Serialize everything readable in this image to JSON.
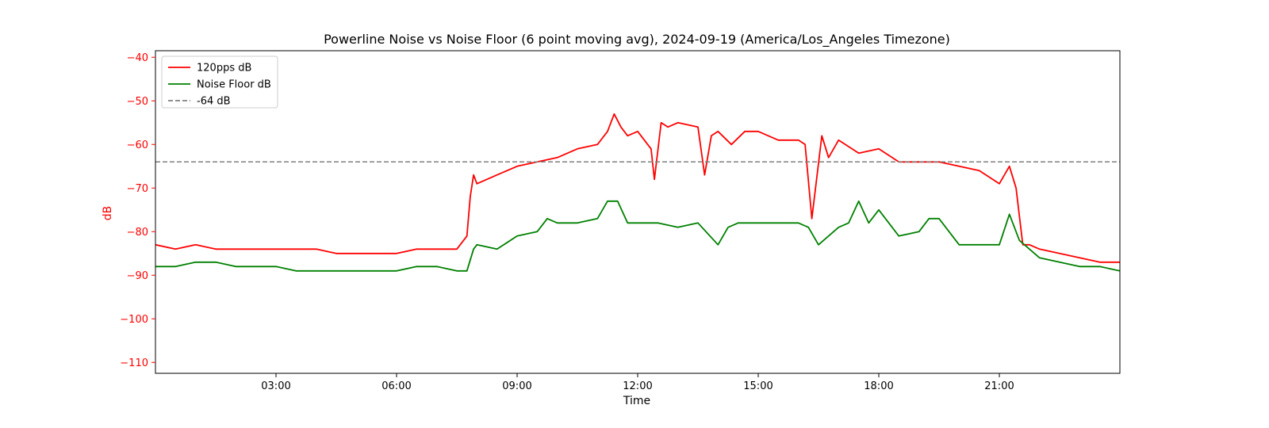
{
  "chart_data": {
    "type": "line",
    "title": "Powerline Noise vs Noise Floor (6 point moving avg), 2024-09-19 (America/Los_Angeles Timezone)",
    "xlabel": "Time",
    "ylabel": "dB",
    "xlim": [
      "00:00",
      "24:00"
    ],
    "ylim": [
      -112.5,
      -38.5
    ],
    "x_ticks": [
      "03:00",
      "06:00",
      "09:00",
      "12:00",
      "15:00",
      "18:00",
      "21:00"
    ],
    "y_ticks": [
      -40,
      -50,
      -60,
      -70,
      -80,
      -90,
      -100,
      -110
    ],
    "y_tick_labels": [
      "−40",
      "−50",
      "−60",
      "−70",
      "−80",
      "−90",
      "−100",
      "−110"
    ],
    "grid": false,
    "legend_position": "top-left",
    "y_axis_color": "#ff0000",
    "series": [
      {
        "name": "120pps dB",
        "color": "#ff0000",
        "x": [
          "00:00",
          "00:30",
          "01:00",
          "01:30",
          "02:00",
          "02:30",
          "03:00",
          "03:30",
          "04:00",
          "04:30",
          "05:00",
          "05:30",
          "06:00",
          "06:30",
          "07:00",
          "07:30",
          "07:45",
          "07:50",
          "07:55",
          "08:00",
          "08:30",
          "09:00",
          "09:30",
          "10:00",
          "10:30",
          "11:00",
          "11:15",
          "11:25",
          "11:35",
          "11:45",
          "12:00",
          "12:20",
          "12:25",
          "12:35",
          "12:45",
          "13:00",
          "13:30",
          "13:40",
          "13:50",
          "14:00",
          "14:20",
          "14:40",
          "15:00",
          "15:30",
          "16:00",
          "16:10",
          "16:20",
          "16:35",
          "16:45",
          "17:00",
          "17:30",
          "18:00",
          "18:30",
          "19:00",
          "19:30",
          "20:00",
          "20:30",
          "21:00",
          "21:15",
          "21:25",
          "21:35",
          "21:45",
          "22:00",
          "22:30",
          "23:00",
          "23:30",
          "24:00"
        ],
        "y": [
          -83,
          -84,
          -83,
          -84,
          -84,
          -84,
          -84,
          -84,
          -84,
          -85,
          -85,
          -85,
          -85,
          -84,
          -84,
          -84,
          -81,
          -72,
          -67,
          -69,
          -67,
          -65,
          -64,
          -63,
          -61,
          -60,
          -57,
          -53,
          -56,
          -58,
          -57,
          -61,
          -68,
          -55,
          -56,
          -55,
          -56,
          -67,
          -58,
          -57,
          -60,
          -57,
          -57,
          -59,
          -59,
          -60,
          -77,
          -58,
          -63,
          -59,
          -62,
          -61,
          -64,
          -64,
          -64,
          -65,
          -66,
          -69,
          -65,
          -70,
          -83,
          -83,
          -84,
          -85,
          -86,
          -87,
          -87
        ]
      },
      {
        "name": "Noise Floor dB",
        "color": "#008000",
        "x": [
          "00:00",
          "00:30",
          "01:00",
          "01:30",
          "02:00",
          "02:30",
          "03:00",
          "03:30",
          "04:00",
          "04:30",
          "05:00",
          "05:30",
          "06:00",
          "06:30",
          "07:00",
          "07:30",
          "07:45",
          "07:55",
          "08:00",
          "08:30",
          "09:00",
          "09:30",
          "09:45",
          "10:00",
          "10:30",
          "11:00",
          "11:15",
          "11:30",
          "11:45",
          "12:00",
          "12:30",
          "13:00",
          "13:30",
          "14:00",
          "14:15",
          "14:30",
          "15:00",
          "15:30",
          "16:00",
          "16:15",
          "16:30",
          "17:00",
          "17:15",
          "17:30",
          "17:45",
          "18:00",
          "18:30",
          "19:00",
          "19:15",
          "19:30",
          "20:00",
          "20:30",
          "21:00",
          "21:15",
          "21:30",
          "21:45",
          "22:00",
          "22:30",
          "23:00",
          "23:30",
          "24:00"
        ],
        "y": [
          -88,
          -88,
          -87,
          -87,
          -88,
          -88,
          -88,
          -89,
          -89,
          -89,
          -89,
          -89,
          -89,
          -88,
          -88,
          -89,
          -89,
          -84,
          -83,
          -84,
          -81,
          -80,
          -77,
          -78,
          -78,
          -77,
          -73,
          -73,
          -78,
          -78,
          -78,
          -79,
          -78,
          -83,
          -79,
          -78,
          -78,
          -78,
          -78,
          -79,
          -83,
          -79,
          -78,
          -73,
          -78,
          -75,
          -81,
          -80,
          -77,
          -77,
          -83,
          -83,
          -83,
          -76,
          -82,
          -84,
          -86,
          -87,
          -88,
          -88,
          -89
        ]
      },
      {
        "name": "-64 dB",
        "color": "#808080",
        "style": "dashed",
        "constant": -64
      }
    ]
  }
}
